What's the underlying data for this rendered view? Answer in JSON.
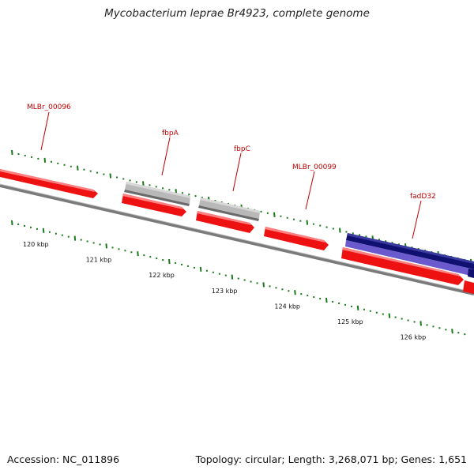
{
  "header": {
    "title": "Mycobacterium leprae Br4923, complete genome"
  },
  "footer": {
    "accession": "Accession: NC_011896",
    "stats": "Topology: circular; Length: 3,268,071 bp; Genes: 1,651"
  },
  "colors": {
    "backbone": "#7a7a7a",
    "cds_forward": "#ee1111",
    "gene_grey": "#b8b8b8",
    "gene_navy": "#101070",
    "gene_violet": "#6a5acd",
    "ticks": "#1a7a1a",
    "label": "#c00000"
  },
  "scale": {
    "ticks": [
      {
        "kbp": 120,
        "label": "120 kbp"
      },
      {
        "kbp": 121,
        "label": "121 kbp"
      },
      {
        "kbp": 122,
        "label": "122 kbp"
      },
      {
        "kbp": 123,
        "label": "123 kbp"
      },
      {
        "kbp": 124,
        "label": "124 kbp"
      },
      {
        "kbp": 125,
        "label": "125 kbp"
      },
      {
        "kbp": 126,
        "label": "126 kbp"
      }
    ]
  },
  "features": [
    {
      "name": "MLBr_00096",
      "track": "cds"
    },
    {
      "name": "fbpA",
      "track": "cds"
    },
    {
      "name": "fbpC",
      "track": "cds"
    },
    {
      "name": "MLBr_00099",
      "track": "cds"
    },
    {
      "name": "fadD32",
      "track": "cds"
    }
  ]
}
